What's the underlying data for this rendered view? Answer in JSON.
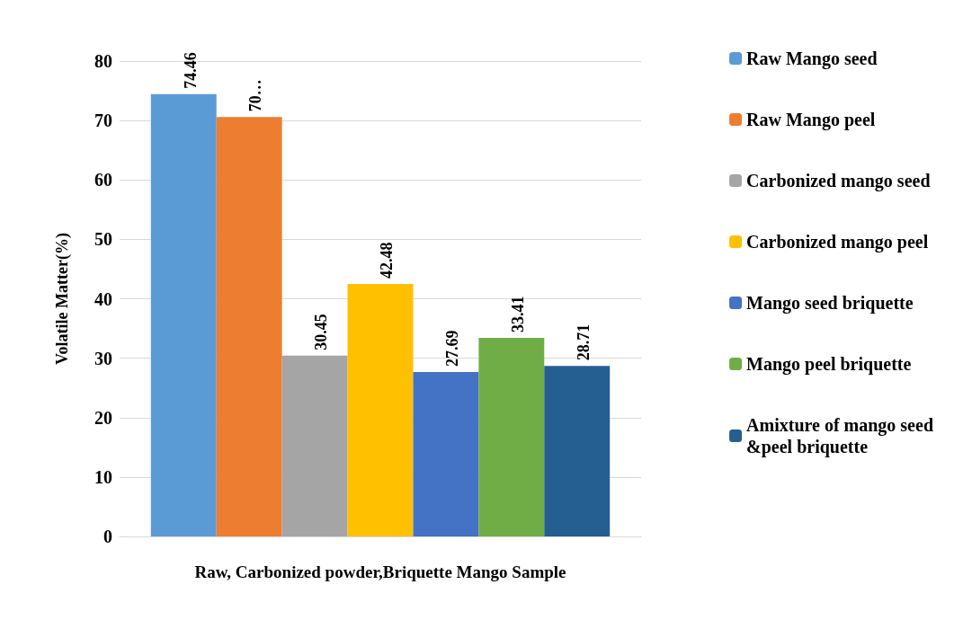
{
  "chart_data": {
    "type": "bar",
    "xlabel": "Raw, Carbonized powder,Briquette Mango Sample",
    "ylabel": "Volatile Matter(%)",
    "categories": [
      null
    ],
    "ylim": [
      0,
      80
    ],
    "yticks": [
      0,
      10,
      20,
      30,
      40,
      50,
      60,
      70,
      80
    ],
    "grid": "y",
    "legend": "right",
    "series": [
      {
        "name": "Raw Mango seed",
        "color": "#5b9bd5",
        "values": [
          74.46
        ],
        "value_labels": [
          "74.46"
        ]
      },
      {
        "name": "Raw Mango peel",
        "color": "#ed7d31",
        "values": [
          70.6
        ],
        "value_labels": [
          "70…"
        ]
      },
      {
        "name": "Carbonized mango seed",
        "color": "#a5a5a5",
        "values": [
          30.45
        ],
        "value_labels": [
          "30.45"
        ]
      },
      {
        "name": "Carbonized mango peel",
        "color": "#ffc000",
        "values": [
          42.48
        ],
        "value_labels": [
          "42.48"
        ]
      },
      {
        "name": "Mango seed briquette",
        "color": "#4472c4",
        "values": [
          27.69
        ],
        "value_labels": [
          "27.69"
        ]
      },
      {
        "name": "Mango peel briquette",
        "color": "#70ad47",
        "values": [
          33.41
        ],
        "value_labels": [
          "33.41"
        ]
      },
      {
        "name": "Amixture of mango seed\n&peel briquette",
        "color": "#255e91",
        "values": [
          28.71
        ],
        "value_labels": [
          "28.71"
        ]
      }
    ]
  }
}
